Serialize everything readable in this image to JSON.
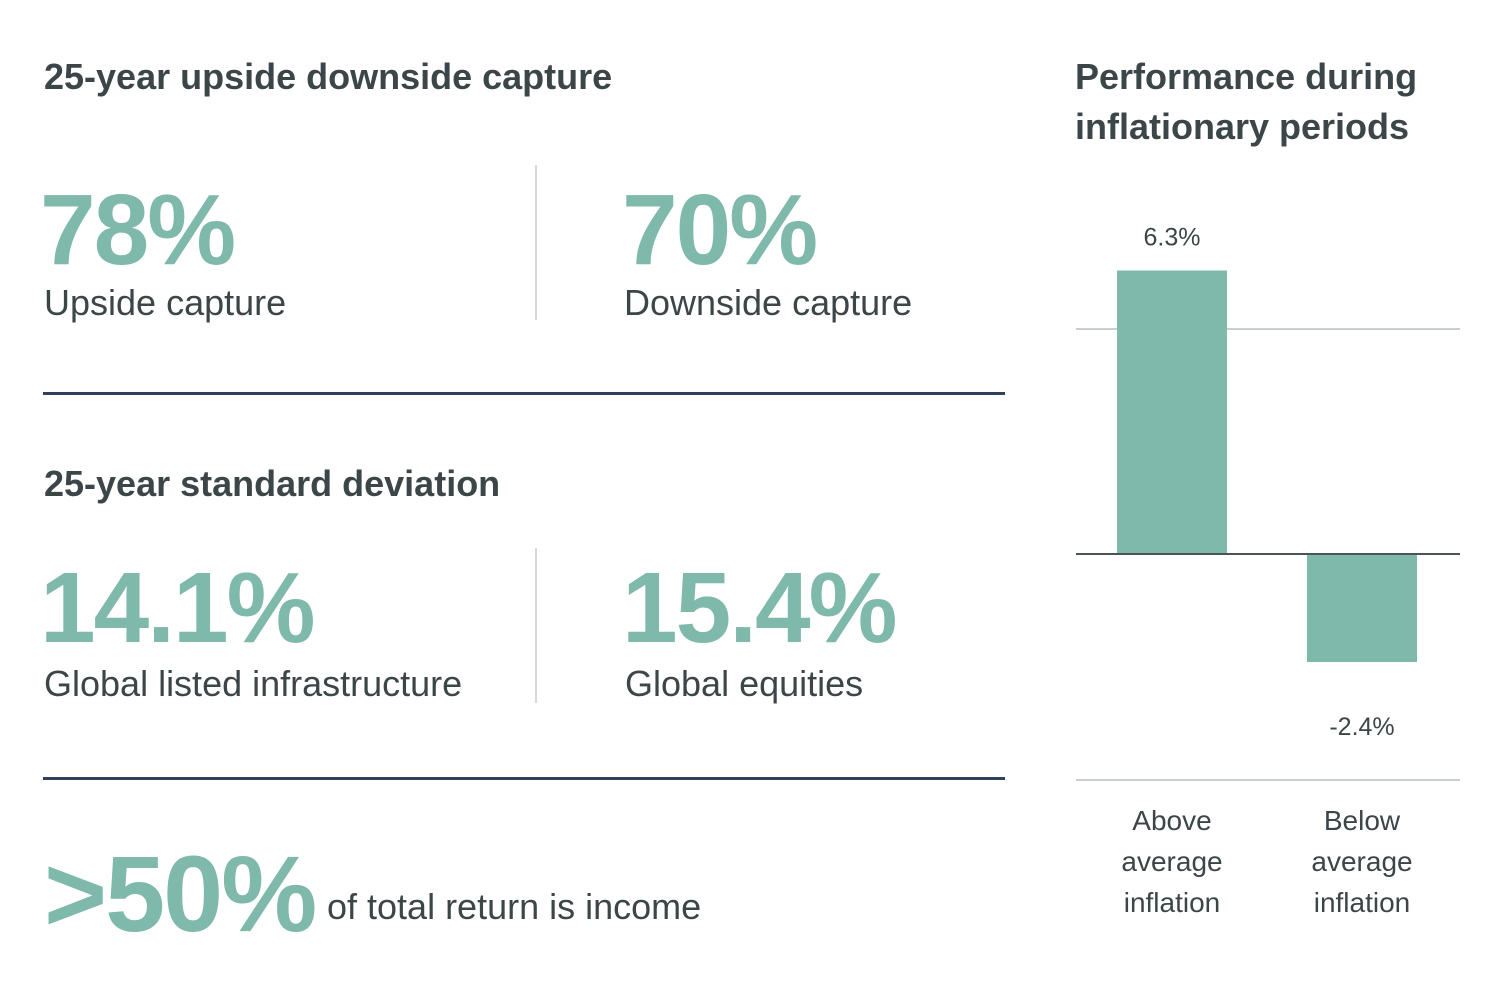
{
  "capture": {
    "heading": "25-year upside downside capture",
    "upside_value": "78%",
    "upside_label": "Upside capture",
    "downside_value": "70%",
    "downside_label": "Downside capture"
  },
  "deviation": {
    "heading": "25-year standard deviation",
    "infra_value": "14.1%",
    "infra_label": "Global listed infrastructure",
    "equities_value": "15.4%",
    "equities_label": "Global equities"
  },
  "income": {
    "value": ">50%",
    "label": "of total return is income"
  },
  "colors": {
    "accent": "#7fb9ab",
    "text": "#3c4648",
    "rule": "#2f3f5c",
    "divider": "#d4d8d8"
  },
  "chart_data": {
    "type": "bar",
    "title": "Performance during inflationary periods",
    "categories": [
      "Above average inflation",
      "Below average inflation"
    ],
    "category_lines": [
      [
        "Above",
        "average",
        "inflation"
      ],
      [
        "Below",
        "average",
        "inflation"
      ]
    ],
    "values": [
      6.3,
      -2.4
    ],
    "data_labels": [
      "6.3%",
      "-2.4%"
    ],
    "ylim": [
      -4,
      8
    ],
    "gridlines": [
      5,
      0
    ],
    "color": "#7fb9ab",
    "legend": "none"
  }
}
